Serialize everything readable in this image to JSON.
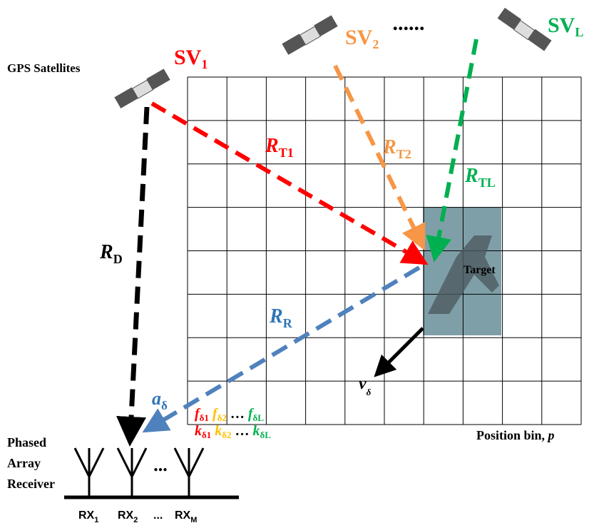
{
  "title": "GPS Satellites",
  "satellites": [
    {
      "name": "SV",
      "sub": "1"
    },
    {
      "name": "SV",
      "sub": "2"
    },
    {
      "name": "SV",
      "sub": "L"
    }
  ],
  "satellite_ellipsis": "......",
  "ranges": {
    "direct": {
      "name": "R",
      "sub": "D"
    },
    "receiver": {
      "name": "R",
      "sub": "R"
    },
    "transmit": [
      {
        "name": "R",
        "sub": "T1"
      },
      {
        "name": "R",
        "sub": "T2"
      },
      {
        "name": "R",
        "sub": "TL"
      }
    ]
  },
  "target": "Target",
  "velocity": {
    "name": "v",
    "sub": "δ"
  },
  "steering": {
    "name": "a",
    "sub": "δ"
  },
  "doppler": {
    "f": [
      {
        "name": "f",
        "sub": "δ1"
      },
      {
        "name": "f",
        "sub": "δ2"
      },
      {
        "name": "f",
        "sub": "δL"
      }
    ],
    "k": [
      {
        "name": "k",
        "sub": "δ1"
      },
      {
        "name": "k",
        "sub": "δ2"
      },
      {
        "name": "k",
        "sub": "δL"
      }
    ],
    "ellipsis": "…"
  },
  "axis_label": {
    "text": "Position bin, ",
    "var": "p"
  },
  "receiver": {
    "label": [
      "Phased",
      "Array",
      "Receiver"
    ],
    "elements": [
      {
        "name": "RX",
        "sub": "1"
      },
      {
        "name": "RX",
        "sub": "2"
      },
      {
        "name": "RX",
        "sub": "M"
      }
    ],
    "ellipsis": "...",
    "antenna_ellipsis": "..."
  }
}
